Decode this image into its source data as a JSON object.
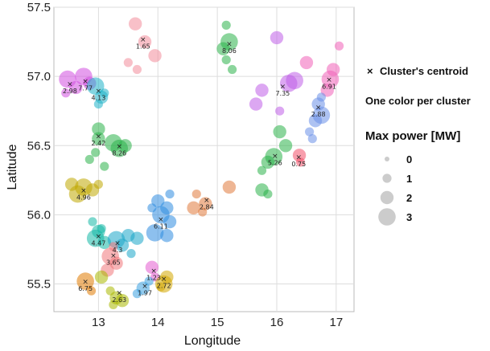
{
  "chart_data": {
    "type": "scatter",
    "xlabel": "Longitude",
    "ylabel": "Latitude",
    "xlim": [
      12.25,
      17.3
    ],
    "ylim": [
      55.3,
      57.5
    ],
    "x_ticks": [
      "13",
      "14",
      "15",
      "16",
      "17"
    ],
    "y_ticks": [
      "55.5",
      "56.0",
      "56.5",
      "57.0",
      "57.5"
    ],
    "grid": true,
    "legend_position": "right",
    "legend": {
      "centroid_symbol": "×",
      "centroid_label": "Cluster's centroid",
      "color_note": "One color per cluster",
      "size_title": "Max power [MW]",
      "size_values": [
        "0",
        "1",
        "2",
        "3"
      ]
    },
    "centroids": [
      {
        "label": "1.65",
        "lon": 13.75,
        "lat": 57.27,
        "color": "#f28c9a"
      },
      {
        "label": "8.06",
        "lon": 15.2,
        "lat": 57.24,
        "color": "#2bb34a"
      },
      {
        "label": "7.77",
        "lon": 12.78,
        "lat": 56.97,
        "color": "#d14fe0"
      },
      {
        "label": "2.98",
        "lon": 12.52,
        "lat": 56.95,
        "color": "#d14fe0"
      },
      {
        "label": "4.13",
        "lon": 13.0,
        "lat": 56.9,
        "color": "#1fb2c8"
      },
      {
        "label": "7.35",
        "lon": 16.1,
        "lat": 56.93,
        "color": "#c05ee8"
      },
      {
        "label": "6.91",
        "lon": 16.88,
        "lat": 56.98,
        "color": "#f061b8"
      },
      {
        "label": "2.88",
        "lon": 16.7,
        "lat": 56.78,
        "color": "#6a8fe8"
      },
      {
        "label": "2.42",
        "lon": 13.0,
        "lat": 56.57,
        "color": "#2bb34a"
      },
      {
        "label": "8.26",
        "lon": 13.35,
        "lat": 56.5,
        "color": "#2bb34a"
      },
      {
        "label": "5.26",
        "lon": 15.97,
        "lat": 56.43,
        "color": "#2bb34a"
      },
      {
        "label": "0.75",
        "lon": 16.37,
        "lat": 56.42,
        "color": "#f3506a"
      },
      {
        "label": "4.96",
        "lon": 12.75,
        "lat": 56.18,
        "color": "#bfa800"
      },
      {
        "label": "2.84",
        "lon": 14.82,
        "lat": 56.11,
        "color": "#e07a3c"
      },
      {
        "label": "6.11",
        "lon": 14.05,
        "lat": 55.97,
        "color": "#2f8ce0"
      },
      {
        "label": "4.47",
        "lon": 13.0,
        "lat": 55.85,
        "color": "#14b8a6"
      },
      {
        "label": "4.3",
        "lon": 13.32,
        "lat": 55.8,
        "color": "#1aa6c8"
      },
      {
        "label": "3.65",
        "lon": 13.25,
        "lat": 55.71,
        "color": "#f0767a"
      },
      {
        "label": "1.23",
        "lon": 13.93,
        "lat": 55.6,
        "color": "#e35bd0"
      },
      {
        "label": "2.72",
        "lon": 14.1,
        "lat": 55.54,
        "color": "#d4a800"
      },
      {
        "label": "6.75",
        "lon": 12.78,
        "lat": 55.52,
        "color": "#e07a00"
      },
      {
        "label": "1.97",
        "lon": 13.78,
        "lat": 55.49,
        "color": "#3aa0e0"
      },
      {
        "label": "2.63",
        "lon": 13.35,
        "lat": 55.44,
        "color": "#a9b800"
      }
    ],
    "points": [
      {
        "lon": 12.48,
        "lat": 56.98,
        "mw": 3,
        "color": "#d14fe0"
      },
      {
        "lon": 12.62,
        "lat": 56.92,
        "mw": 2,
        "color": "#d14fe0"
      },
      {
        "lon": 12.75,
        "lat": 57.0,
        "mw": 3,
        "color": "#d14fe0"
      },
      {
        "lon": 12.85,
        "lat": 56.95,
        "mw": 2,
        "color": "#d14fe0"
      },
      {
        "lon": 12.45,
        "lat": 56.88,
        "mw": 1,
        "color": "#d14fe0"
      },
      {
        "lon": 12.95,
        "lat": 56.93,
        "mw": 3,
        "color": "#1fb2c8"
      },
      {
        "lon": 13.05,
        "lat": 56.85,
        "mw": 2,
        "color": "#1fb2c8"
      },
      {
        "lon": 13.1,
        "lat": 56.88,
        "mw": 1,
        "color": "#1fb2c8"
      },
      {
        "lon": 13.0,
        "lat": 56.8,
        "mw": 1,
        "color": "#1fb2c8"
      },
      {
        "lon": 13.62,
        "lat": 57.38,
        "mw": 2,
        "color": "#f28c9a"
      },
      {
        "lon": 13.78,
        "lat": 57.25,
        "mw": 2,
        "color": "#f28c9a"
      },
      {
        "lon": 13.95,
        "lat": 57.15,
        "mw": 2,
        "color": "#f28c9a"
      },
      {
        "lon": 13.5,
        "lat": 57.1,
        "mw": 1,
        "color": "#f28c9a"
      },
      {
        "lon": 13.65,
        "lat": 57.05,
        "mw": 1,
        "color": "#f28c9a"
      },
      {
        "lon": 15.2,
        "lat": 57.25,
        "mw": 3,
        "color": "#2bb34a"
      },
      {
        "lon": 15.1,
        "lat": 57.2,
        "mw": 2,
        "color": "#2bb34a"
      },
      {
        "lon": 15.15,
        "lat": 57.37,
        "mw": 1,
        "color": "#2bb34a"
      },
      {
        "lon": 15.15,
        "lat": 57.12,
        "mw": 1,
        "color": "#2bb34a"
      },
      {
        "lon": 15.25,
        "lat": 57.05,
        "mw": 1,
        "color": "#2bb34a"
      },
      {
        "lon": 13.0,
        "lat": 56.62,
        "mw": 2,
        "color": "#2bb34a"
      },
      {
        "lon": 13.0,
        "lat": 56.55,
        "mw": 2,
        "color": "#2bb34a"
      },
      {
        "lon": 13.25,
        "lat": 56.52,
        "mw": 3,
        "color": "#2bb34a"
      },
      {
        "lon": 13.35,
        "lat": 56.48,
        "mw": 3,
        "color": "#2bb34a"
      },
      {
        "lon": 13.45,
        "lat": 56.5,
        "mw": 2,
        "color": "#2bb34a"
      },
      {
        "lon": 12.95,
        "lat": 56.45,
        "mw": 1,
        "color": "#2bb34a"
      },
      {
        "lon": 12.85,
        "lat": 56.4,
        "mw": 1,
        "color": "#2bb34a"
      },
      {
        "lon": 13.1,
        "lat": 56.35,
        "mw": 1,
        "color": "#2bb34a"
      },
      {
        "lon": 16.9,
        "lat": 56.98,
        "mw": 3,
        "color": "#f061b8"
      },
      {
        "lon": 16.95,
        "lat": 57.05,
        "mw": 2,
        "color": "#f061b8"
      },
      {
        "lon": 16.5,
        "lat": 57.1,
        "mw": 2,
        "color": "#f061b8"
      },
      {
        "lon": 17.05,
        "lat": 57.22,
        "mw": 1,
        "color": "#f061b8"
      },
      {
        "lon": 16.85,
        "lat": 56.9,
        "mw": 2,
        "color": "#f061b8"
      },
      {
        "lon": 15.75,
        "lat": 56.9,
        "mw": 2,
        "color": "#c05ee8"
      },
      {
        "lon": 16.2,
        "lat": 56.95,
        "mw": 3,
        "color": "#c05ee8"
      },
      {
        "lon": 16.3,
        "lat": 56.97,
        "mw": 3,
        "color": "#c05ee8"
      },
      {
        "lon": 16.0,
        "lat": 57.28,
        "mw": 2,
        "color": "#c05ee8"
      },
      {
        "lon": 15.65,
        "lat": 56.8,
        "mw": 2,
        "color": "#c05ee8"
      },
      {
        "lon": 16.05,
        "lat": 56.75,
        "mw": 1,
        "color": "#c05ee8"
      },
      {
        "lon": 16.7,
        "lat": 56.8,
        "mw": 2,
        "color": "#6a8fe8"
      },
      {
        "lon": 16.75,
        "lat": 56.72,
        "mw": 3,
        "color": "#6a8fe8"
      },
      {
        "lon": 16.65,
        "lat": 56.68,
        "mw": 2,
        "color": "#6a8fe8"
      },
      {
        "lon": 16.55,
        "lat": 56.6,
        "mw": 1,
        "color": "#6a8fe8"
      },
      {
        "lon": 16.6,
        "lat": 56.55,
        "mw": 1,
        "color": "#6a8fe8"
      },
      {
        "lon": 16.75,
        "lat": 56.85,
        "mw": 1,
        "color": "#6a8fe8"
      },
      {
        "lon": 16.05,
        "lat": 56.6,
        "mw": 2,
        "color": "#2bb34a"
      },
      {
        "lon": 15.95,
        "lat": 56.42,
        "mw": 3,
        "color": "#2bb34a"
      },
      {
        "lon": 15.85,
        "lat": 56.38,
        "mw": 2,
        "color": "#2bb34a"
      },
      {
        "lon": 15.75,
        "lat": 56.32,
        "mw": 1,
        "color": "#2bb34a"
      },
      {
        "lon": 15.75,
        "lat": 56.18,
        "mw": 2,
        "color": "#2bb34a"
      },
      {
        "lon": 15.85,
        "lat": 56.15,
        "mw": 1,
        "color": "#2bb34a"
      },
      {
        "lon": 16.15,
        "lat": 56.5,
        "mw": 2,
        "color": "#2bb34a"
      },
      {
        "lon": 16.38,
        "lat": 56.43,
        "mw": 2,
        "color": "#f3506a"
      },
      {
        "lon": 16.4,
        "lat": 56.38,
        "mw": 1,
        "color": "#f3506a"
      },
      {
        "lon": 12.55,
        "lat": 56.22,
        "mw": 2,
        "color": "#bfa800"
      },
      {
        "lon": 12.65,
        "lat": 56.15,
        "mw": 3,
        "color": "#bfa800"
      },
      {
        "lon": 12.75,
        "lat": 56.2,
        "mw": 3,
        "color": "#bfa800"
      },
      {
        "lon": 12.9,
        "lat": 56.18,
        "mw": 2,
        "color": "#bfa800"
      },
      {
        "lon": 13.0,
        "lat": 56.22,
        "mw": 1,
        "color": "#bfa800"
      },
      {
        "lon": 14.8,
        "lat": 56.08,
        "mw": 2,
        "color": "#e07a3c"
      },
      {
        "lon": 14.6,
        "lat": 56.05,
        "mw": 2,
        "color": "#e07a3c"
      },
      {
        "lon": 14.75,
        "lat": 56.02,
        "mw": 1,
        "color": "#e07a3c"
      },
      {
        "lon": 15.2,
        "lat": 56.2,
        "mw": 2,
        "color": "#e07a3c"
      },
      {
        "lon": 14.65,
        "lat": 56.15,
        "mw": 1,
        "color": "#e07a3c"
      },
      {
        "lon": 14.05,
        "lat": 56.0,
        "mw": 3,
        "color": "#2f8ce0"
      },
      {
        "lon": 14.15,
        "lat": 56.05,
        "mw": 2,
        "color": "#2f8ce0"
      },
      {
        "lon": 14.0,
        "lat": 56.1,
        "mw": 2,
        "color": "#2f8ce0"
      },
      {
        "lon": 14.2,
        "lat": 55.95,
        "mw": 2,
        "color": "#2f8ce0"
      },
      {
        "lon": 13.95,
        "lat": 55.87,
        "mw": 3,
        "color": "#2f8ce0"
      },
      {
        "lon": 14.15,
        "lat": 55.85,
        "mw": 2,
        "color": "#2f8ce0"
      },
      {
        "lon": 14.2,
        "lat": 56.15,
        "mw": 1,
        "color": "#2f8ce0"
      },
      {
        "lon": 13.9,
        "lat": 56.05,
        "mw": 1,
        "color": "#2f8ce0"
      },
      {
        "lon": 13.0,
        "lat": 55.88,
        "mw": 2,
        "color": "#14b8a6"
      },
      {
        "lon": 12.95,
        "lat": 55.83,
        "mw": 3,
        "color": "#14b8a6"
      },
      {
        "lon": 13.1,
        "lat": 55.8,
        "mw": 2,
        "color": "#14b8a6"
      },
      {
        "lon": 12.9,
        "lat": 55.95,
        "mw": 1,
        "color": "#14b8a6"
      },
      {
        "lon": 13.05,
        "lat": 55.9,
        "mw": 1,
        "color": "#14b8a6"
      },
      {
        "lon": 13.3,
        "lat": 55.82,
        "mw": 3,
        "color": "#1aa6c8"
      },
      {
        "lon": 13.4,
        "lat": 55.78,
        "mw": 2,
        "color": "#1aa6c8"
      },
      {
        "lon": 13.5,
        "lat": 55.85,
        "mw": 2,
        "color": "#1aa6c8"
      },
      {
        "lon": 13.65,
        "lat": 55.83,
        "mw": 2,
        "color": "#1aa6c8"
      },
      {
        "lon": 13.55,
        "lat": 55.72,
        "mw": 1,
        "color": "#1aa6c8"
      },
      {
        "lon": 13.2,
        "lat": 55.7,
        "mw": 3,
        "color": "#f0767a"
      },
      {
        "lon": 13.3,
        "lat": 55.65,
        "mw": 2,
        "color": "#f0767a"
      },
      {
        "lon": 13.15,
        "lat": 55.6,
        "mw": 2,
        "color": "#f0767a"
      },
      {
        "lon": 13.25,
        "lat": 55.77,
        "mw": 1,
        "color": "#f0767a"
      },
      {
        "lon": 13.9,
        "lat": 55.62,
        "mw": 2,
        "color": "#e35bd0"
      },
      {
        "lon": 13.95,
        "lat": 55.55,
        "mw": 1,
        "color": "#e35bd0"
      },
      {
        "lon": 14.1,
        "lat": 55.5,
        "mw": 3,
        "color": "#d4a800"
      },
      {
        "lon": 14.15,
        "lat": 55.55,
        "mw": 2,
        "color": "#d4a800"
      },
      {
        "lon": 14.05,
        "lat": 55.48,
        "mw": 1,
        "color": "#d4a800"
      },
      {
        "lon": 12.78,
        "lat": 55.52,
        "mw": 3,
        "color": "#e07a00"
      },
      {
        "lon": 12.88,
        "lat": 55.45,
        "mw": 1,
        "color": "#e07a00"
      },
      {
        "lon": 13.75,
        "lat": 55.47,
        "mw": 2,
        "color": "#3aa0e0"
      },
      {
        "lon": 13.65,
        "lat": 55.43,
        "mw": 1,
        "color": "#3aa0e0"
      },
      {
        "lon": 13.85,
        "lat": 55.52,
        "mw": 1,
        "color": "#3aa0e0"
      },
      {
        "lon": 13.3,
        "lat": 55.4,
        "mw": 2,
        "color": "#a9b800"
      },
      {
        "lon": 13.4,
        "lat": 55.38,
        "mw": 2,
        "color": "#a9b800"
      },
      {
        "lon": 13.2,
        "lat": 55.45,
        "mw": 1,
        "color": "#a9b800"
      },
      {
        "lon": 13.25,
        "lat": 55.35,
        "mw": 1,
        "color": "#a9b800"
      },
      {
        "lon": 13.05,
        "lat": 55.55,
        "mw": 2,
        "color": "#a9b800"
      }
    ]
  }
}
